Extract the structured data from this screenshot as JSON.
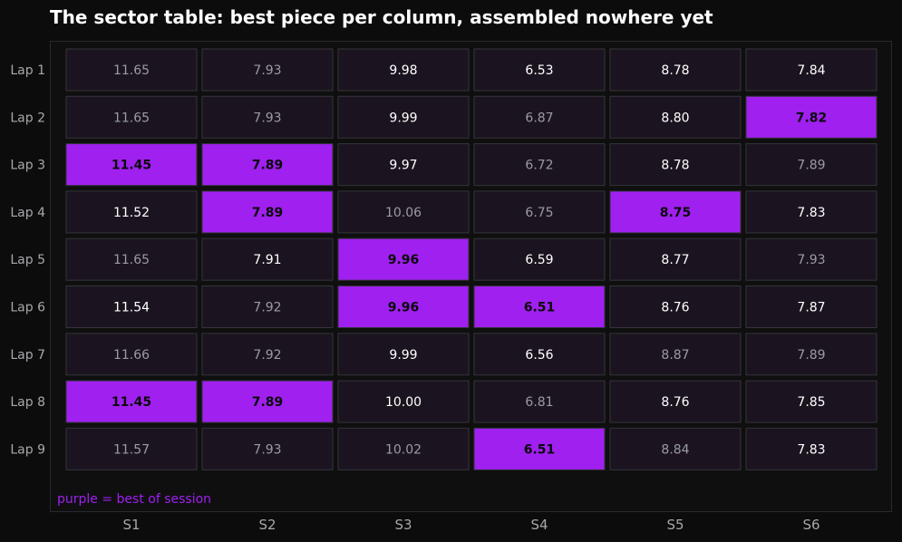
{
  "chart_data": {
    "type": "table",
    "title": "The sector table: best piece per column, assembled nowhere yet",
    "columns": [
      "S1",
      "S2",
      "S3",
      "S4",
      "S5",
      "S6"
    ],
    "rows": [
      "Lap 1",
      "Lap 2",
      "Lap 3",
      "Lap 4",
      "Lap 5",
      "Lap 6",
      "Lap 7",
      "Lap 8",
      "Lap 9"
    ],
    "values": [
      [
        "11.65",
        "7.93",
        "9.98",
        "6.53",
        "8.78",
        "7.84"
      ],
      [
        "11.65",
        "7.93",
        "9.99",
        "6.87",
        "8.80",
        "7.82"
      ],
      [
        "11.45",
        "7.89",
        "9.97",
        "6.72",
        "8.78",
        "7.89"
      ],
      [
        "11.52",
        "7.89",
        "10.06",
        "6.75",
        "8.75",
        "7.83"
      ],
      [
        "11.65",
        "7.91",
        "9.96",
        "6.59",
        "8.77",
        "7.93"
      ],
      [
        "11.54",
        "7.92",
        "9.96",
        "6.51",
        "8.76",
        "7.87"
      ],
      [
        "11.66",
        "7.92",
        "9.99",
        "6.56",
        "8.87",
        "7.89"
      ],
      [
        "11.45",
        "7.89",
        "10.00",
        "6.81",
        "8.76",
        "7.85"
      ],
      [
        "11.57",
        "7.93",
        "10.02",
        "6.51",
        "8.84",
        "7.83"
      ]
    ],
    "cell_status": [
      [
        "dim",
        "dim",
        "bright",
        "bright",
        "bright",
        "bright"
      ],
      [
        "dim",
        "dim",
        "bright",
        "dim",
        "bright",
        "best"
      ],
      [
        "best",
        "best",
        "bright",
        "dim",
        "bright",
        "dim"
      ],
      [
        "bright",
        "best",
        "dim",
        "dim",
        "best",
        "bright"
      ],
      [
        "dim",
        "bright",
        "best",
        "bright",
        "bright",
        "dim"
      ],
      [
        "bright",
        "dim",
        "best",
        "best",
        "bright",
        "bright"
      ],
      [
        "dim",
        "dim",
        "bright",
        "bright",
        "dim",
        "dim"
      ],
      [
        "best",
        "best",
        "bright",
        "dim",
        "bright",
        "bright"
      ],
      [
        "dim",
        "dim",
        "dim",
        "best",
        "dim",
        "bright"
      ]
    ],
    "legend_note": "purple = best of session",
    "colors": {
      "background": "#0c0c0d",
      "panel": "#0f0f10",
      "cell": "#1b1420",
      "cell_border": "#34343a",
      "best": "#a020f0",
      "text_bright": "#ffffff",
      "text_dim": "#9b9b9f",
      "text_best": "#0a0a0a",
      "label": "#a8a8ab",
      "note": "#a020f0"
    }
  }
}
